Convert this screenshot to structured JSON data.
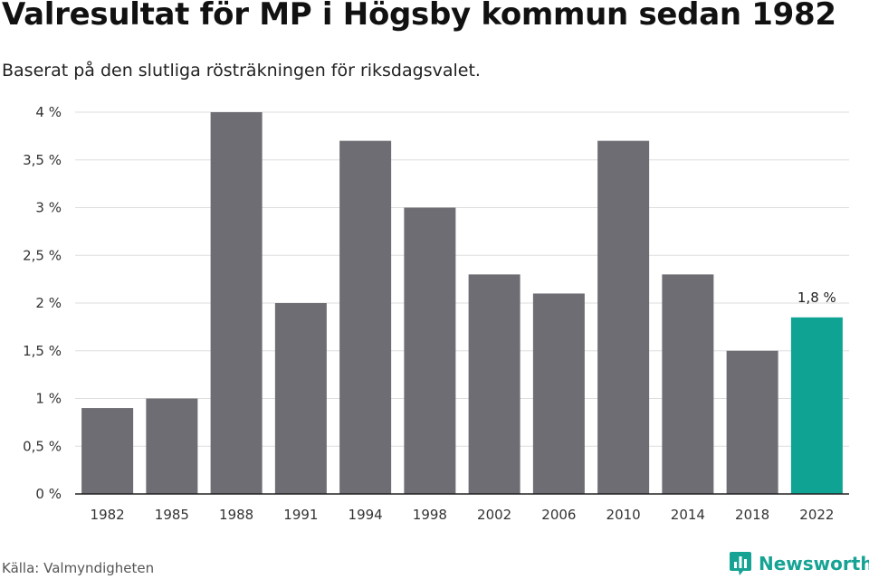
{
  "header": {
    "title": "Valresultat för MP i Högsby kommun sedan 1982",
    "subtitle": "Baserat på den slutliga rösträkningen för riksdagsvalet."
  },
  "footer": {
    "source": "Källa: Valmyndigheten",
    "brand": "Newsworthy",
    "brand_icon": "bar-chart-logo-icon"
  },
  "colors": {
    "bar": "#6e6d73",
    "highlight": "#0fa393",
    "grid": "#dddddd",
    "brand": "#16a394"
  },
  "chart_data": {
    "type": "bar",
    "title": "Valresultat för MP i Högsby kommun sedan 1982",
    "subtitle": "Baserat på den slutliga rösträkningen för riksdagsvalet.",
    "categories": [
      "1982",
      "1985",
      "1988",
      "1991",
      "1994",
      "1998",
      "2002",
      "2006",
      "2010",
      "2014",
      "2018",
      "2022"
    ],
    "values": [
      0.9,
      1.0,
      4.0,
      2.0,
      3.7,
      3.0,
      2.3,
      2.1,
      3.7,
      2.3,
      1.5,
      1.85
    ],
    "ylim": [
      0,
      4
    ],
    "yticks": [
      0,
      0.5,
      1,
      1.5,
      2,
      2.5,
      3,
      3.5,
      4
    ],
    "ytick_labels": [
      "0 %",
      "0,5 %",
      "1 %",
      "1,5 %",
      "2 %",
      "2,5 %",
      "3 %",
      "3,5 %",
      "4 %"
    ],
    "highlight_index": 11,
    "data_labels": [
      {
        "index": 11,
        "text": "1,8 %"
      }
    ],
    "grid": true,
    "legend": "none"
  }
}
